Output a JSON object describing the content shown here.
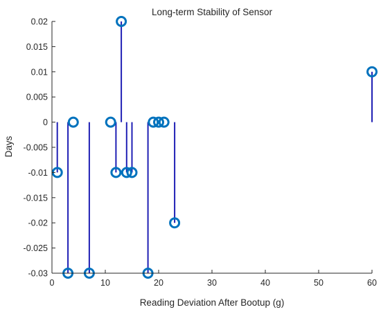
{
  "chart_data": {
    "type": "scatter",
    "style": "stem",
    "title": "Long-term Stability of Sensor",
    "xlabel": "Reading Deviation After Bootup (g)",
    "ylabel": "Days",
    "xlim": [
      0,
      60
    ],
    "ylim": [
      -0.03,
      0.02
    ],
    "xticks": [
      0,
      10,
      20,
      30,
      40,
      50,
      60
    ],
    "xtick_labels": [
      "0",
      "10",
      "20",
      "30",
      "40",
      "50",
      "60"
    ],
    "yticks": [
      0.02,
      0.015,
      0.01,
      0.005,
      0,
      -0.005,
      -0.01,
      -0.015,
      -0.02,
      -0.025,
      -0.03
    ],
    "ytick_labels": [
      "0.02",
      "0.015",
      "0.01",
      "0.005",
      "0",
      "-0.005",
      "-0.01",
      "-0.015",
      "-0.02",
      "-0.025",
      "-0.03"
    ],
    "grid": false,
    "stem_color": "#1f1fb4",
    "marker_color": "#0072bd",
    "axis_color": "#262626",
    "series": [
      {
        "x": [
          1,
          3,
          4,
          7,
          11,
          12,
          13,
          14,
          15,
          18,
          19,
          20,
          21,
          23,
          60
        ],
        "y": [
          -0.01,
          -0.03,
          0,
          -0.03,
          0,
          -0.01,
          0.02,
          -0.01,
          -0.01,
          -0.03,
          0,
          0,
          0,
          -0.02,
          0.01
        ]
      }
    ]
  }
}
